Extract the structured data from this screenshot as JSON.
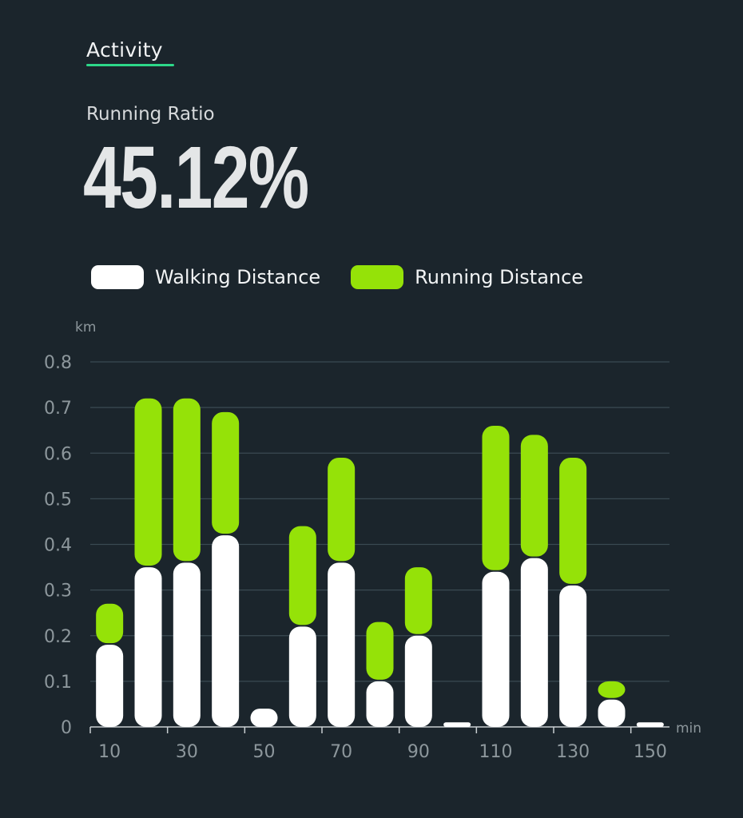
{
  "header": {
    "tab_label": "Activity",
    "metric_label": "Running Ratio",
    "metric_value": "45.12%"
  },
  "colors": {
    "background": "#1b252c",
    "walking": "#ffffff",
    "running": "#95e208",
    "accent_underline": "#2dd889",
    "grid": "#3a4a52",
    "tick_text": "#8d979c"
  },
  "chart_data": {
    "type": "bar",
    "stacked": true,
    "xlabel": "min",
    "ylabel": "km",
    "ylim": [
      0,
      0.8
    ],
    "yticks": [
      "0",
      "0.1",
      "0.2",
      "0.3",
      "0.4",
      "0.5",
      "0.6",
      "0.7",
      "0.8"
    ],
    "xticks": [
      "10",
      "30",
      "50",
      "70",
      "90",
      "110",
      "130",
      "150"
    ],
    "x": [
      10,
      20,
      30,
      40,
      50,
      60,
      70,
      80,
      90,
      100,
      110,
      120,
      130,
      140,
      150
    ],
    "grid": true,
    "legend_position": "top",
    "series": [
      {
        "name": "Walking Distance",
        "values": [
          0.18,
          0.35,
          0.36,
          0.42,
          0.04,
          0.22,
          0.36,
          0.1,
          0.2,
          0.01,
          0.34,
          0.37,
          0.31,
          0.06,
          0.01
        ]
      },
      {
        "name": "Running Distance",
        "values": [
          0.09,
          0.37,
          0.36,
          0.27,
          0.0,
          0.22,
          0.23,
          0.13,
          0.15,
          0.0,
          0.32,
          0.27,
          0.28,
          0.04,
          0.0
        ]
      }
    ]
  }
}
